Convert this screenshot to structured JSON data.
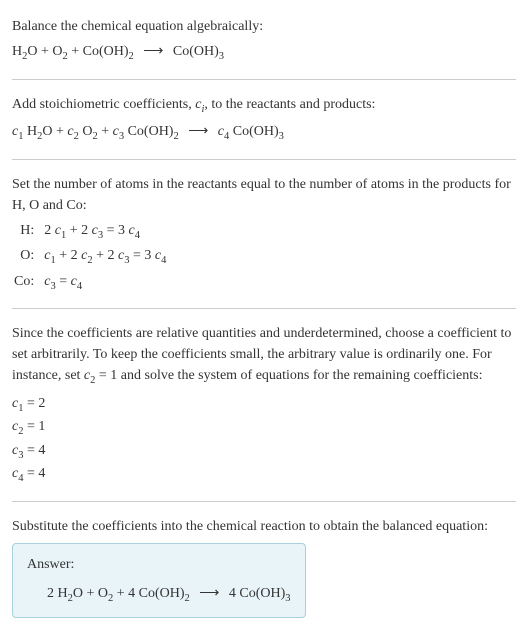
{
  "header": {
    "instruction": "Balance the chemical equation algebraically:",
    "equation_html": "H<span class=\"sub\">2</span>O + O<span class=\"sub\">2</span> + Co(OH)<span class=\"sub\">2</span> <span class=\"arrow\">⟶</span> Co(OH)<span class=\"sub\">3</span>"
  },
  "step1": {
    "text_html": "Add stoichiometric coefficients, <span class=\"italic\">c<span class=\"sub\">i</span></span>, to the reactants and products:",
    "equation_html": "<span class=\"italic\">c</span><span class=\"sub\">1</span> H<span class=\"sub\">2</span>O + <span class=\"italic\">c</span><span class=\"sub\">2</span> O<span class=\"sub\">2</span> + <span class=\"italic\">c</span><span class=\"sub\">3</span> Co(OH)<span class=\"sub\">2</span> <span class=\"arrow\">⟶</span> <span class=\"italic\">c</span><span class=\"sub\">4</span> Co(OH)<span class=\"sub\">3</span>"
  },
  "step2": {
    "text": "Set the number of atoms in the reactants equal to the number of atoms in the products for H, O and Co:",
    "atoms": [
      {
        "label": "H:",
        "eq_html": "2 <span class=\"italic\">c</span><span class=\"sub\">1</span> + 2 <span class=\"italic\">c</span><span class=\"sub\">3</span> = 3 <span class=\"italic\">c</span><span class=\"sub\">4</span>"
      },
      {
        "label": "O:",
        "eq_html": "<span class=\"italic\">c</span><span class=\"sub\">1</span> + 2 <span class=\"italic\">c</span><span class=\"sub\">2</span> + 2 <span class=\"italic\">c</span><span class=\"sub\">3</span> = 3 <span class=\"italic\">c</span><span class=\"sub\">4</span>"
      },
      {
        "label": "Co:",
        "eq_html": "<span class=\"italic\">c</span><span class=\"sub\">3</span> = <span class=\"italic\">c</span><span class=\"sub\">4</span>"
      }
    ]
  },
  "step3": {
    "text_html": "Since the coefficients are relative quantities and underdetermined, choose a coefficient to set arbitrarily. To keep the coefficients small, the arbitrary value is ordinarily one. For instance, set <span class=\"italic\">c</span><span class=\"sub\">2</span> = 1 and solve the system of equations for the remaining coefficients:",
    "coefficients": [
      {
        "html": "<span class=\"italic\">c</span><span class=\"sub\">1</span> = 2"
      },
      {
        "html": "<span class=\"italic\">c</span><span class=\"sub\">2</span> = 1"
      },
      {
        "html": "<span class=\"italic\">c</span><span class=\"sub\">3</span> = 4"
      },
      {
        "html": "<span class=\"italic\">c</span><span class=\"sub\">4</span> = 4"
      }
    ]
  },
  "step4": {
    "text": "Substitute the coefficients into the chemical reaction to obtain the balanced equation:"
  },
  "answer": {
    "label": "Answer:",
    "equation_html": "2 H<span class=\"sub\">2</span>O + O<span class=\"sub\">2</span> + 4 Co(OH)<span class=\"sub\">2</span> <span class=\"arrow\">⟶</span> 4 Co(OH)<span class=\"sub\">3</span>"
  },
  "colors": {
    "text": "#333333",
    "divider": "#cccccc",
    "answer_bg": "#e8f4f8",
    "answer_border": "#a8d0dd"
  }
}
